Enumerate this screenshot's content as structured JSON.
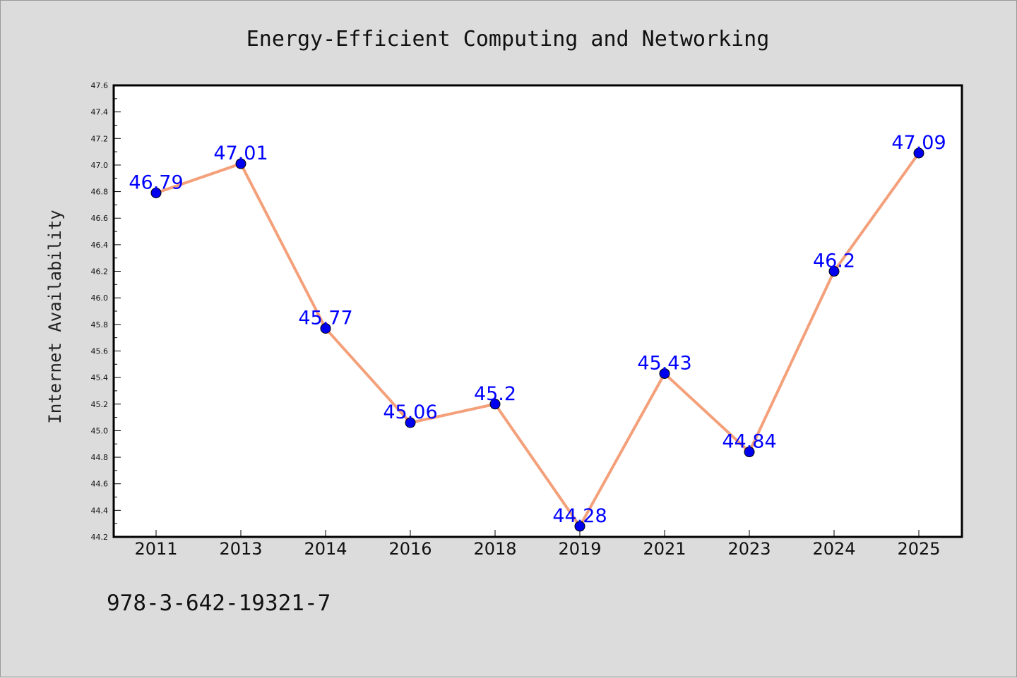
{
  "chart_data": {
    "type": "line",
    "title": "Energy-Efficient Computing and Networking",
    "xlabel": "",
    "ylabel": "Internet Availability",
    "categories": [
      "2011",
      "2013",
      "2014",
      "2016",
      "2018",
      "2019",
      "2021",
      "2023",
      "2024",
      "2025"
    ],
    "series": [
      {
        "values": [
          46.79,
          47.01,
          45.77,
          45.06,
          45.2,
          44.28,
          45.43,
          44.84,
          46.2,
          47.09
        ],
        "labels": [
          "46.79",
          "47.01",
          "45.77",
          "45.06",
          "45.2",
          "44.28",
          "45.43",
          "44.84",
          "46.2",
          "47.09"
        ],
        "line_color": "#f4a07a",
        "marker_color": "#0000ee",
        "label_color": "#0000ff"
      }
    ],
    "ylim": [
      44.2,
      47.6
    ],
    "yticks": [
      "44.2",
      "44.4",
      "44.6",
      "44.8",
      "45.0",
      "45.2",
      "45.4",
      "45.6",
      "45.8",
      "46.0",
      "46.2",
      "46.4",
      "46.6",
      "46.8",
      "47.0",
      "47.2",
      "47.4",
      "47.6"
    ],
    "grid": false,
    "legend": "none"
  },
  "footer": {
    "isbn": "978-3-642-19321-7"
  },
  "colors": {
    "background": "#dcdcdc",
    "plot_background": "#ffffff",
    "axis": "#000000"
  }
}
